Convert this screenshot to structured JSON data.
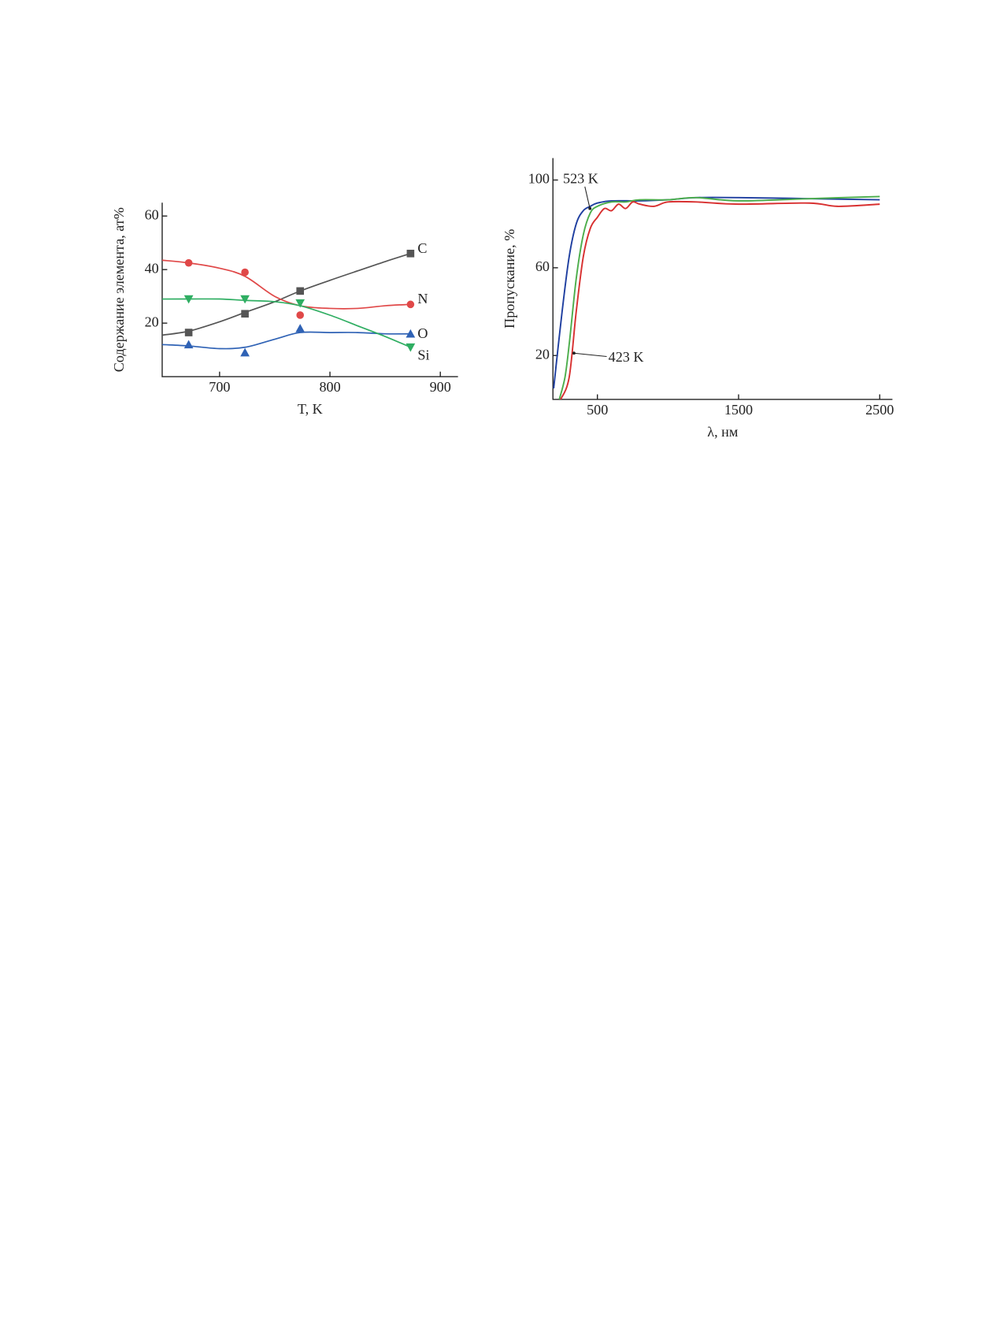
{
  "chart_data": [
    {
      "type": "scatter",
      "xlabel": "T, K",
      "ylabel": "Содержание элемента, ат%",
      "xlim": [
        648,
        916
      ],
      "ylim": [
        0,
        65
      ],
      "xticks": [
        700,
        800,
        900
      ],
      "yticks": [
        20,
        40,
        60
      ],
      "x": [
        672,
        723,
        773,
        873
      ],
      "fit_x": [
        648,
        672,
        700,
        723,
        750,
        773,
        800,
        825,
        850,
        873
      ],
      "series": [
        {
          "name": "C",
          "color": "#555555",
          "marker": "square",
          "values": [
            16.5,
            23.5,
            32,
            46
          ],
          "fit": [
            15.5,
            17,
            20.5,
            24,
            28,
            32,
            36,
            39.5,
            43,
            46
          ]
        },
        {
          "name": "N",
          "color": "#e04848",
          "marker": "circle",
          "values": [
            42.5,
            39,
            23,
            27
          ],
          "fit": [
            43.5,
            42.5,
            40.5,
            37.5,
            30,
            26.5,
            25.5,
            25.5,
            26.5,
            27
          ]
        },
        {
          "name": "O",
          "color": "#2f62b5",
          "marker": "triangle-up",
          "values": [
            12,
            9,
            18,
            16
          ],
          "fit": [
            12,
            11.5,
            10.5,
            11,
            14,
            16.5,
            16.5,
            16.5,
            16,
            16
          ]
        },
        {
          "name": "Si",
          "color": "#2fae62",
          "marker": "triangle-down",
          "values": [
            29,
            29,
            27.5,
            11
          ],
          "fit": [
            29,
            29,
            29,
            28.5,
            28,
            26.5,
            23,
            19,
            15,
            11
          ]
        }
      ]
    },
    {
      "type": "line",
      "xlabel": "λ, нм",
      "ylabel": "Пропускание, %",
      "xlim": [
        185,
        2590
      ],
      "ylim": [
        0,
        110
      ],
      "xticks": [
        500,
        1500,
        2500
      ],
      "yticks": [
        20,
        60,
        100
      ],
      "series": [
        {
          "name": "523 K",
          "color": "#1f3fa0",
          "x": [
            190,
            250,
            300,
            350,
            400,
            450,
            500,
            600,
            800,
            1000,
            1200,
            1500,
            2000,
            2500
          ],
          "values": [
            5,
            40,
            65,
            80,
            86,
            88,
            89.5,
            90.5,
            90.5,
            91,
            92,
            92,
            91.5,
            91
          ]
        },
        {
          "color": "#4cae4c",
          "x": [
            230,
            270,
            300,
            350,
            400,
            450,
            500,
            600,
            700,
            800,
            1000,
            1200,
            1500,
            2000,
            2500
          ],
          "values": [
            0,
            10,
            25,
            55,
            75,
            85,
            88,
            90,
            90,
            91,
            91,
            92,
            90.5,
            91.5,
            92.5
          ]
        },
        {
          "name": "423 K",
          "color": "#d83030",
          "x": [
            240,
            300,
            350,
            400,
            450,
            500,
            550,
            600,
            650,
            700,
            750,
            800,
            900,
            1000,
            1200,
            1500,
            2000,
            2200,
            2500
          ],
          "values": [
            0,
            10,
            40,
            65,
            78,
            83,
            87,
            86,
            89,
            87,
            90,
            89,
            88,
            90,
            90,
            89,
            89.5,
            88,
            89
          ]
        }
      ]
    }
  ]
}
